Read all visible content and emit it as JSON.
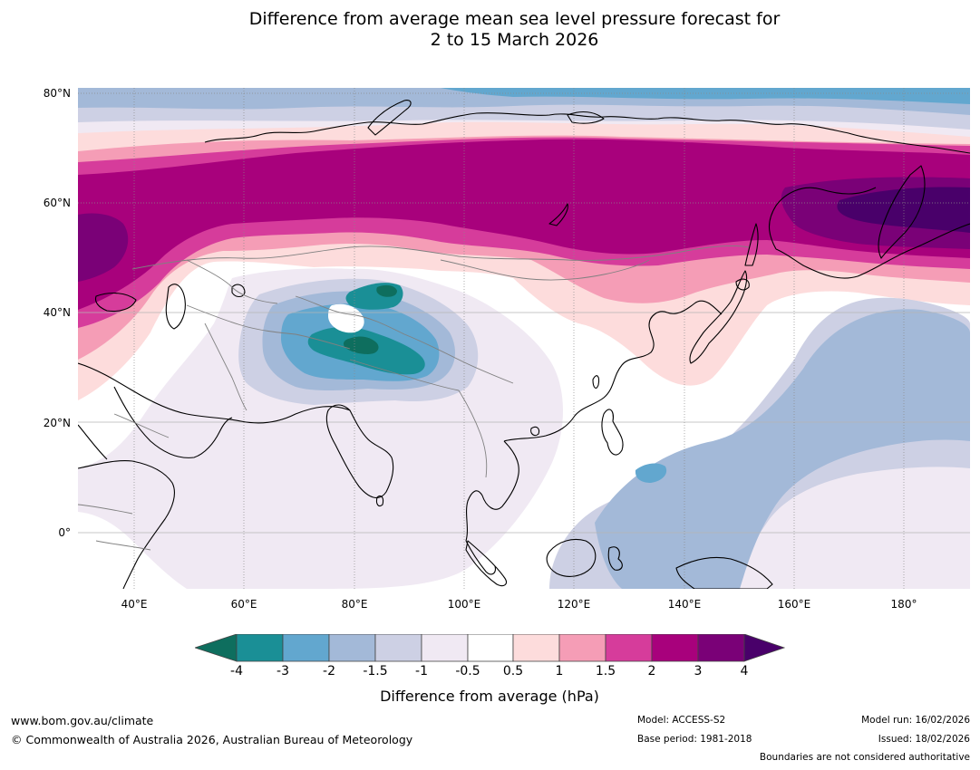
{
  "title": {
    "line1": "Difference from average mean sea level pressure forecast for",
    "line2": "2 to 15 March 2026"
  },
  "map": {
    "lat_labels": [
      "80°N",
      "60°N",
      "40°N",
      "20°N",
      "0°"
    ],
    "lon_labels": [
      "40°E",
      "60°E",
      "80°E",
      "100°E",
      "120°E",
      "140°E",
      "160°E",
      "180°"
    ]
  },
  "colorbar": {
    "title": "Difference from average (hPa)",
    "tick_labels": [
      "-4",
      "-3",
      "-2",
      "-1.5",
      "-1",
      "-0.5",
      "0.5",
      "1",
      "1.5",
      "2",
      "3",
      "4"
    ],
    "colors": [
      "#0e6e5e",
      "#1a8f96",
      "#62a7cf",
      "#a3b9d8",
      "#cdd0e4",
      "#f0e9f3",
      "#ffffff",
      "#fddcdc",
      "#f59db6",
      "#d63c9b",
      "#a8017c",
      "#7a0177",
      "#49006a"
    ]
  },
  "footer": {
    "website": "www.bom.gov.au/climate",
    "copyright": "© Commonwealth of Australia 2026, Australian Bureau of Meteorology",
    "model": "Model: ACCESS-S2",
    "base_period": "Base period: 1981-2018",
    "model_run": "Model run: 16/02/2026",
    "issued": "Issued: 18/02/2026",
    "disclaimer": "Boundaries are not considered authoritative"
  }
}
